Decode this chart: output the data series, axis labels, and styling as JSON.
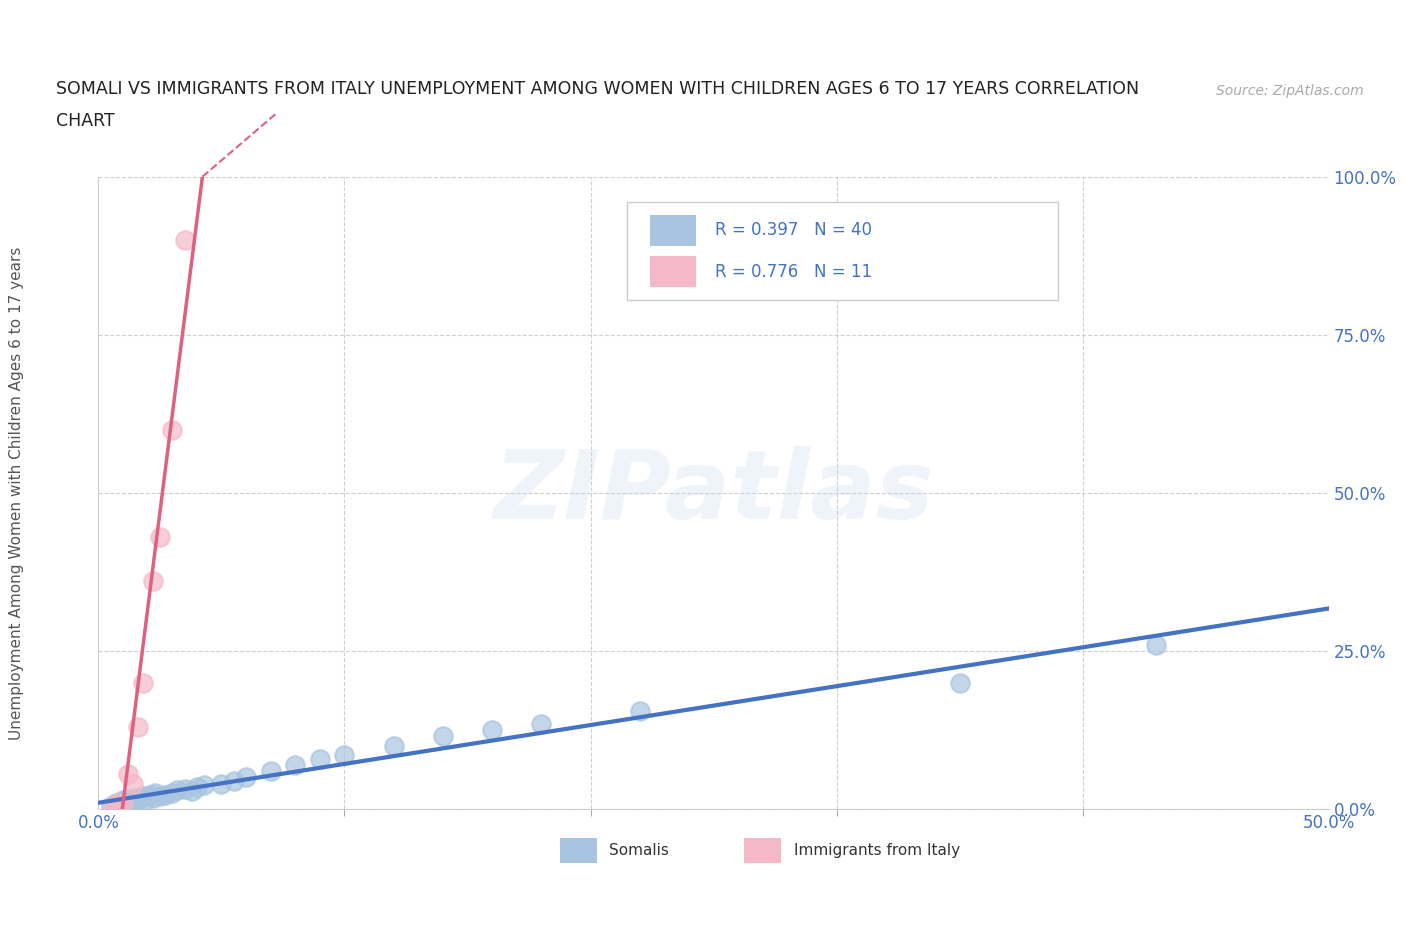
{
  "title_line1": "SOMALI VS IMMIGRANTS FROM ITALY UNEMPLOYMENT AMONG WOMEN WITH CHILDREN AGES 6 TO 17 YEARS CORRELATION",
  "title_line2": "CHART",
  "source": "Source: ZipAtlas.com",
  "ylabel": "Unemployment Among Women with Children Ages 6 to 17 years",
  "xlim": [
    0.0,
    0.5
  ],
  "ylim": [
    0.0,
    1.0
  ],
  "xticks_major": [
    0.0,
    0.5
  ],
  "xticks_minor": [
    0.1,
    0.2,
    0.3,
    0.4
  ],
  "yticks": [
    0.0,
    0.25,
    0.5,
    0.75,
    1.0
  ],
  "xtick_labels_major": [
    "0.0%",
    "50.0%"
  ],
  "ytick_labels": [
    "0.0%",
    "25.0%",
    "50.0%",
    "75.0%",
    "100.0%"
  ],
  "somali_x": [
    0.005,
    0.007,
    0.008,
    0.009,
    0.01,
    0.011,
    0.012,
    0.013,
    0.014,
    0.015,
    0.016,
    0.017,
    0.018,
    0.019,
    0.02,
    0.021,
    0.022,
    0.023,
    0.025,
    0.027,
    0.03,
    0.032,
    0.035,
    0.038,
    0.04,
    0.043,
    0.05,
    0.055,
    0.06,
    0.07,
    0.08,
    0.09,
    0.1,
    0.12,
    0.14,
    0.16,
    0.18,
    0.22,
    0.35,
    0.43
  ],
  "somali_y": [
    0.005,
    0.01,
    0.008,
    0.012,
    0.015,
    0.01,
    0.012,
    0.015,
    0.018,
    0.012,
    0.015,
    0.018,
    0.02,
    0.015,
    0.02,
    0.022,
    0.018,
    0.025,
    0.02,
    0.022,
    0.025,
    0.03,
    0.032,
    0.028,
    0.035,
    0.038,
    0.04,
    0.045,
    0.05,
    0.06,
    0.07,
    0.08,
    0.085,
    0.1,
    0.115,
    0.125,
    0.135,
    0.155,
    0.2,
    0.26
  ],
  "italy_x": [
    0.006,
    0.008,
    0.01,
    0.012,
    0.014,
    0.016,
    0.018,
    0.022,
    0.025,
    0.03,
    0.035
  ],
  "italy_y": [
    0.005,
    0.01,
    0.008,
    0.055,
    0.04,
    0.13,
    0.2,
    0.36,
    0.43,
    0.6,
    0.9
  ],
  "somali_color": "#a8c4e0",
  "italy_color": "#f4b8c8",
  "somali_line_color": "#4472c4",
  "italy_line_color": "#e06080",
  "somali_R": 0.397,
  "somali_N": 40,
  "italy_R": 0.776,
  "italy_N": 11,
  "legend_somali_label": "Somalis",
  "legend_italy_label": "Immigrants from Italy",
  "watermark": "ZIPatlas",
  "background_color": "#ffffff",
  "grid_color": "#d0d0d0",
  "title_color": "#222222",
  "axis_label_color": "#555555",
  "tick_color": "#4472c4",
  "legend_text_color": "#4472c4"
}
